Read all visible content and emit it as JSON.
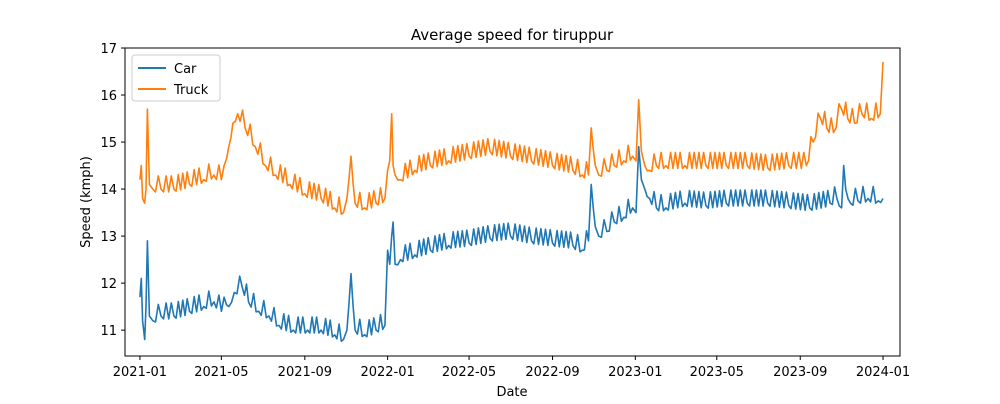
{
  "chart_data": {
    "type": "line",
    "title": "Average speed for tiruppur",
    "xlabel": "Date",
    "ylabel": "Speed (kmph)",
    "x_range": [
      "2020-12-10",
      "2024-01-26"
    ],
    "ylim": [
      10.45,
      17.0
    ],
    "y_ticks": [
      11,
      12,
      13,
      14,
      15,
      16,
      17
    ],
    "x_ticks": [
      "2021-01",
      "2021-05",
      "2021-09",
      "2022-01",
      "2022-05",
      "2022-09",
      "2023-01",
      "2023-05",
      "2023-09",
      "2024-01"
    ],
    "grid": false,
    "legend_position": "top-left",
    "series": [
      {
        "name": "Car",
        "color": "#1f77b4",
        "x": [
          "2021-01-01",
          "2021-01-03",
          "2021-01-05",
          "2021-01-08",
          "2021-01-10",
          "2021-01-12",
          "2021-01-15",
          "2021-01-20",
          "2021-02-01",
          "2021-02-20",
          "2021-03-15",
          "2021-04-05",
          "2021-04-20",
          "2021-05-01",
          "2021-05-05",
          "2021-05-12",
          "2021-05-20",
          "2021-06-01",
          "2021-06-10",
          "2021-06-25",
          "2021-07-10",
          "2021-07-25",
          "2021-08-15",
          "2021-09-05",
          "2021-09-25",
          "2021-10-15",
          "2021-10-28",
          "2021-11-02",
          "2021-11-08",
          "2021-11-14",
          "2021-11-28",
          "2021-12-15",
          "2021-12-28",
          "2022-01-01",
          "2022-01-04",
          "2022-01-07",
          "2022-01-09",
          "2022-01-12",
          "2022-01-20",
          "2022-02-10",
          "2022-03-05",
          "2022-04-01",
          "2022-05-01",
          "2022-06-01",
          "2022-07-01",
          "2022-08-01",
          "2022-09-01",
          "2022-10-01",
          "2022-10-15",
          "2022-10-24",
          "2022-10-28",
          "2022-11-03",
          "2022-11-08",
          "2022-11-20",
          "2022-12-01",
          "2022-12-15",
          "2022-12-28",
          "2023-01-02",
          "2023-01-06",
          "2023-01-10",
          "2023-01-15",
          "2023-01-22",
          "2023-02-01",
          "2023-02-15",
          "2023-03-15",
          "2023-04-15",
          "2023-05-15",
          "2023-06-15",
          "2023-07-15",
          "2023-08-15",
          "2023-09-15",
          "2023-10-15",
          "2023-10-25",
          "2023-11-01",
          "2023-11-04",
          "2023-11-07",
          "2023-11-14",
          "2023-11-25",
          "2023-12-10",
          "2023-12-25",
          "2024-01-01"
        ],
        "values": [
          11.7,
          12.1,
          11.2,
          10.8,
          11.5,
          12.9,
          11.3,
          11.2,
          11.3,
          11.3,
          11.4,
          11.5,
          11.6,
          11.4,
          11.7,
          11.5,
          11.8,
          11.9,
          11.6,
          11.4,
          11.3,
          11.1,
          11.0,
          11.0,
          11.0,
          10.9,
          10.8,
          11.0,
          12.2,
          11.0,
          10.9,
          11.0,
          11.1,
          12.7,
          12.4,
          13.0,
          13.3,
          12.4,
          12.5,
          12.6,
          12.7,
          12.8,
          12.85,
          12.95,
          13.0,
          12.9,
          12.85,
          12.8,
          12.7,
          12.9,
          14.1,
          13.2,
          13.0,
          13.1,
          13.3,
          13.4,
          13.6,
          13.5,
          14.9,
          14.2,
          14.0,
          13.8,
          13.6,
          13.6,
          13.7,
          13.65,
          13.7,
          13.7,
          13.7,
          13.65,
          13.6,
          13.7,
          13.8,
          13.6,
          14.5,
          14.0,
          13.7,
          13.75,
          13.8,
          13.75,
          13.8
        ]
      },
      {
        "name": "Truck",
        "color": "#ff7f0e",
        "x": [
          "2021-01-01",
          "2021-01-03",
          "2021-01-05",
          "2021-01-08",
          "2021-01-10",
          "2021-01-12",
          "2021-01-15",
          "2021-01-20",
          "2021-02-01",
          "2021-02-20",
          "2021-03-15",
          "2021-04-05",
          "2021-04-20",
          "2021-05-01",
          "2021-05-05",
          "2021-05-12",
          "2021-05-18",
          "2021-05-25",
          "2021-06-05",
          "2021-06-20",
          "2021-07-05",
          "2021-07-20",
          "2021-08-10",
          "2021-09-01",
          "2021-09-25",
          "2021-10-15",
          "2021-10-28",
          "2021-11-02",
          "2021-11-08",
          "2021-11-14",
          "2021-11-28",
          "2021-12-15",
          "2021-12-28",
          "2022-01-01",
          "2022-01-04",
          "2022-01-07",
          "2022-01-09",
          "2022-01-12",
          "2022-01-20",
          "2022-02-10",
          "2022-03-05",
          "2022-04-01",
          "2022-05-01",
          "2022-06-01",
          "2022-07-01",
          "2022-08-01",
          "2022-09-01",
          "2022-10-01",
          "2022-10-15",
          "2022-10-24",
          "2022-10-28",
          "2022-11-03",
          "2022-11-08",
          "2022-11-20",
          "2022-12-01",
          "2022-12-15",
          "2022-12-28",
          "2023-01-02",
          "2023-01-06",
          "2023-01-10",
          "2023-01-15",
          "2023-01-22",
          "2023-02-01",
          "2023-02-15",
          "2023-03-15",
          "2023-04-15",
          "2023-05-15",
          "2023-06-15",
          "2023-07-15",
          "2023-08-15",
          "2023-09-10",
          "2023-09-20",
          "2023-10-01",
          "2023-10-10",
          "2023-10-20",
          "2023-11-01",
          "2023-11-10",
          "2023-11-20",
          "2023-12-01",
          "2023-12-15",
          "2023-12-28",
          "2024-01-01"
        ],
        "values": [
          14.2,
          14.5,
          13.8,
          13.7,
          14.0,
          15.7,
          14.1,
          14.0,
          14.0,
          14.0,
          14.1,
          14.2,
          14.3,
          14.2,
          14.5,
          14.9,
          15.4,
          15.6,
          15.3,
          14.9,
          14.5,
          14.3,
          14.1,
          13.9,
          13.8,
          13.6,
          13.5,
          13.8,
          14.7,
          13.7,
          13.6,
          13.7,
          13.8,
          14.4,
          14.6,
          15.6,
          14.5,
          14.3,
          14.2,
          14.4,
          14.5,
          14.6,
          14.7,
          14.8,
          14.7,
          14.6,
          14.5,
          14.4,
          14.3,
          14.3,
          15.3,
          14.5,
          14.3,
          14.4,
          14.5,
          14.6,
          14.7,
          14.6,
          15.9,
          14.8,
          14.5,
          14.4,
          14.5,
          14.5,
          14.5,
          14.5,
          14.5,
          14.5,
          14.45,
          14.5,
          14.5,
          15.0,
          15.5,
          15.3,
          15.2,
          15.7,
          15.5,
          15.4,
          15.6,
          15.5,
          15.6,
          16.7
        ]
      }
    ]
  }
}
